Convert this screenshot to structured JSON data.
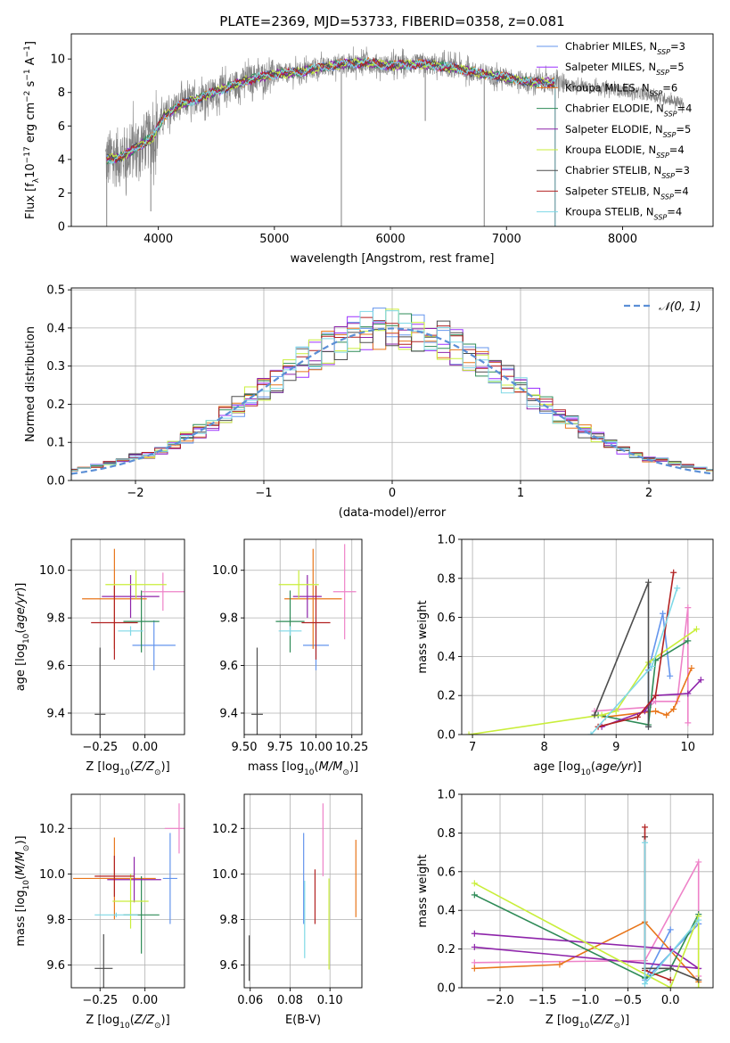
{
  "figure": {
    "title": "PLATE=2369, MJD=53733, FIBERID=0358, z=0.081"
  },
  "models": [
    {
      "name": "Chabrier MILES",
      "nssp": "3",
      "color": "#6495ed"
    },
    {
      "name": "Salpeter MILES",
      "nssp": "5",
      "color": "#9b30ff"
    },
    {
      "name": "Kroupa MILES",
      "nssp": "6",
      "color": "#e8761b"
    },
    {
      "name": "Chabrier ELODIE",
      "nssp": "4",
      "color": "#2e8b57"
    },
    {
      "name": "Salpeter ELODIE",
      "nssp": "5",
      "color": "#8e24aa"
    },
    {
      "name": "Kroupa ELODIE",
      "nssp": "4",
      "color": "#c9ee3a"
    },
    {
      "name": "Chabrier STELIB",
      "nssp": "3",
      "color": "#4d4d4d"
    },
    {
      "name": "Salpeter STELIB",
      "nssp": "4",
      "color": "#b22222"
    },
    {
      "name": "Kroupa STELIB",
      "nssp": "4",
      "color": "#7fd8e6"
    }
  ],
  "chart_data": [
    {
      "id": "spectrum",
      "type": "line",
      "xlabel": "wavelength [Angstrom, rest frame]",
      "ylabel": "Flux [f_λ 10^-17 erg cm^-2 s^-1 A^-1]",
      "xlim": [
        3250,
        8780
      ],
      "ylim": [
        0,
        11.5
      ],
      "xticks": [
        4000,
        5000,
        6000,
        7000,
        8000
      ],
      "yticks": [
        0,
        2,
        4,
        6,
        8,
        10
      ],
      "grid": false,
      "legend": "upper right",
      "data_color": "#808080",
      "continuum": [
        [
          3560,
          4.0
        ],
        [
          3700,
          4.2
        ],
        [
          3850,
          4.9
        ],
        [
          3950,
          5.3
        ],
        [
          4050,
          6.6
        ],
        [
          4200,
          7.3
        ],
        [
          4400,
          7.8
        ],
        [
          4600,
          8.3
        ],
        [
          4800,
          8.8
        ],
        [
          5000,
          9.1
        ],
        [
          5200,
          9.2
        ],
        [
          5400,
          9.5
        ],
        [
          5600,
          9.7
        ],
        [
          5800,
          9.8
        ],
        [
          6000,
          9.6
        ],
        [
          6200,
          9.7
        ],
        [
          6400,
          9.6
        ],
        [
          6600,
          9.4
        ],
        [
          6800,
          9.1
        ],
        [
          7000,
          8.9
        ],
        [
          7200,
          8.6
        ],
        [
          7400,
          8.6
        ],
        [
          7600,
          8.4
        ],
        [
          7800,
          8.3
        ],
        [
          8000,
          8.1
        ],
        [
          8200,
          7.9
        ],
        [
          8400,
          7.6
        ],
        [
          8530,
          7.3
        ]
      ],
      "model_end": 7420,
      "data_start": 3545,
      "data_end": 8530,
      "spikes_down": [
        [
          3555,
          0
        ],
        [
          3935,
          0.9
        ],
        [
          5577,
          0
        ],
        [
          6300,
          6.3
        ],
        [
          6808,
          0
        ],
        [
          7418,
          0
        ]
      ]
    },
    {
      "id": "residuals",
      "type": "histogram",
      "xlabel": "(data-model)/error",
      "ylabel": "Normed distribution",
      "xlim": [
        -2.5,
        2.5
      ],
      "ylim": [
        0,
        0.505
      ],
      "xticks": [
        -2,
        -1,
        0,
        1,
        2
      ],
      "yticks": [
        0.0,
        0.1,
        0.2,
        0.3,
        0.4,
        0.5
      ],
      "grid": true,
      "legend": "upper right",
      "reference_label": "𝒩(0, 1)",
      "reference_color": "#5b8fd6",
      "bin_width": 0.1
    },
    {
      "id": "age_vs_Z",
      "type": "errorbar",
      "xlabel": "Z [log10(Z/Z☉)]",
      "ylabel": "age [log10(age/yr)]",
      "xlim": [
        -0.41,
        0.22
      ],
      "ylim": [
        9.31,
        10.13
      ],
      "xticks": [
        -0.25,
        0.0
      ],
      "yticks": [
        9.4,
        9.6,
        9.8,
        10.0
      ],
      "points": [
        {
          "x": 0.05,
          "y": 9.685,
          "xerr": 0.12,
          "yerr": 0.105,
          "color": "#6495ed"
        },
        {
          "x": 0.1,
          "y": 9.91,
          "xerr": 0.12,
          "yerr": 0.08,
          "color": "#ee82c8"
        },
        {
          "x": -0.17,
          "y": 9.88,
          "xerr": 0.18,
          "yerr": 0.21,
          "color": "#e8761b"
        },
        {
          "x": -0.02,
          "y": 9.785,
          "xerr": 0.1,
          "yerr": 0.13,
          "color": "#2e8b57"
        },
        {
          "x": -0.08,
          "y": 9.89,
          "xerr": 0.16,
          "yerr": 0.09,
          "color": "#8e24aa"
        },
        {
          "x": -0.05,
          "y": 9.94,
          "xerr": 0.17,
          "yerr": 0.06,
          "color": "#c9ee3a"
        },
        {
          "x": -0.25,
          "y": 9.395,
          "xerr": 0.03,
          "yerr": 0.28,
          "color": "#4d4d4d"
        },
        {
          "x": -0.17,
          "y": 9.78,
          "xerr": 0.13,
          "yerr": 0.155,
          "color": "#b22222"
        },
        {
          "x": -0.08,
          "y": 9.745,
          "xerr": 0.07,
          "yerr": 0.02,
          "color": "#7fd8e6"
        }
      ]
    },
    {
      "id": "age_vs_mass",
      "type": "errorbar",
      "xlabel": "mass [log10(M/M☉)]",
      "ylabel": "",
      "xlim": [
        9.5,
        10.32
      ],
      "ylim": [
        9.31,
        10.13
      ],
      "xticks": [
        9.5,
        9.75,
        10.0,
        10.25
      ],
      "yticks": [
        9.4,
        9.6,
        9.8,
        10.0
      ],
      "points": [
        {
          "x": 10.0,
          "y": 9.685,
          "xerr": 0.09,
          "yerr": 0.105,
          "color": "#6495ed"
        },
        {
          "x": 10.2,
          "y": 9.91,
          "xerr": 0.08,
          "yerr": 0.2,
          "color": "#ee82c8"
        },
        {
          "x": 9.98,
          "y": 9.88,
          "xerr": 0.2,
          "yerr": 0.21,
          "color": "#e8761b"
        },
        {
          "x": 9.82,
          "y": 9.785,
          "xerr": 0.1,
          "yerr": 0.13,
          "color": "#2e8b57"
        },
        {
          "x": 9.94,
          "y": 9.89,
          "xerr": 0.1,
          "yerr": 0.09,
          "color": "#8e24aa"
        },
        {
          "x": 9.88,
          "y": 9.94,
          "xerr": 0.14,
          "yerr": 0.06,
          "color": "#c9ee3a"
        },
        {
          "x": 9.59,
          "y": 9.395,
          "xerr": 0.04,
          "yerr": 0.28,
          "color": "#4d4d4d"
        },
        {
          "x": 10.0,
          "y": 9.78,
          "xerr": 0.1,
          "yerr": 0.155,
          "color": "#b22222"
        },
        {
          "x": 9.82,
          "y": 9.745,
          "xerr": 0.08,
          "yerr": 0.02,
          "color": "#7fd8e6"
        }
      ]
    },
    {
      "id": "weight_vs_age",
      "type": "line",
      "xlabel": "age [log10(age/yr)]",
      "ylabel": "mass weight",
      "xlim": [
        6.85,
        10.35
      ],
      "ylim": [
        0,
        1.0
      ],
      "xticks": [
        7,
        8,
        9,
        10
      ],
      "yticks": [
        0.0,
        0.2,
        0.4,
        0.6,
        0.8,
        1.0
      ],
      "series": [
        {
          "color": "#6495ed",
          "points": [
            [
              9.45,
              0.04
            ],
            [
              9.45,
              0.33
            ],
            [
              9.65,
              0.62
            ],
            [
              9.75,
              0.3
            ]
          ]
        },
        {
          "color": "#ee82c8",
          "points": [
            [
              8.7,
              0.12
            ],
            [
              9.45,
              0.14
            ],
            [
              9.55,
              0.17
            ],
            [
              9.85,
              0.17
            ],
            [
              10.0,
              0.65
            ],
            [
              10.0,
              0.06
            ]
          ]
        },
        {
          "color": "#e8761b",
          "points": [
            [
              8.85,
              0.09
            ],
            [
              9.55,
              0.12
            ],
            [
              9.7,
              0.1
            ],
            [
              9.8,
              0.13
            ],
            [
              10.05,
              0.34
            ]
          ]
        },
        {
          "color": "#2e8b57",
          "points": [
            [
              8.75,
              0.1
            ],
            [
              9.45,
              0.05
            ],
            [
              9.55,
              0.38
            ],
            [
              10.0,
              0.48
            ]
          ]
        },
        {
          "color": "#8e24aa",
          "points": [
            [
              8.8,
              0.04
            ],
            [
              9.4,
              0.12
            ],
            [
              9.55,
              0.2
            ],
            [
              10.0,
              0.21
            ],
            [
              10.18,
              0.28
            ]
          ]
        },
        {
          "color": "#c9ee3a",
          "points": [
            [
              6.95,
              0.0
            ],
            [
              8.8,
              0.1
            ],
            [
              9.0,
              0.12
            ],
            [
              9.45,
              0.37
            ],
            [
              10.12,
              0.54
            ]
          ]
        },
        {
          "color": "#4d4d4d",
          "points": [
            [
              8.7,
              0.1
            ],
            [
              9.45,
              0.78
            ],
            [
              9.45,
              0.04
            ]
          ]
        },
        {
          "color": "#b22222",
          "points": [
            [
              8.75,
              0.04
            ],
            [
              9.3,
              0.09
            ],
            [
              9.55,
              0.2
            ],
            [
              9.8,
              0.83
            ]
          ]
        },
        {
          "color": "#7fd8e6",
          "points": [
            [
              8.65,
              0.0
            ],
            [
              9.5,
              0.35
            ],
            [
              9.85,
              0.75
            ]
          ]
        }
      ]
    },
    {
      "id": "mass_vs_Z",
      "type": "errorbar",
      "xlabel": "Z [log10(Z/Z☉)]",
      "ylabel": "mass [log10(M/M☉)]",
      "xlim": [
        -0.41,
        0.22
      ],
      "ylim": [
        9.5,
        10.35
      ],
      "xticks": [
        -0.25,
        0.0
      ],
      "yticks": [
        9.6,
        9.8,
        10.0,
        10.2
      ],
      "points": [
        {
          "x": 0.14,
          "y": 9.98,
          "xerr": 0.04,
          "yerr": 0.2,
          "color": "#6495ed"
        },
        {
          "x": 0.19,
          "y": 10.2,
          "xerr": 0.08,
          "yerr": 0.11,
          "color": "#ee82c8"
        },
        {
          "x": -0.17,
          "y": 9.98,
          "xerr": 0.23,
          "yerr": 0.18,
          "color": "#e8761b"
        },
        {
          "x": -0.02,
          "y": 9.82,
          "xerr": 0.1,
          "yerr": 0.17,
          "color": "#2e8b57"
        },
        {
          "x": -0.06,
          "y": 9.975,
          "xerr": 0.15,
          "yerr": 0.1,
          "color": "#8e24aa"
        },
        {
          "x": -0.08,
          "y": 9.88,
          "xerr": 0.1,
          "yerr": 0.12,
          "color": "#c9ee3a"
        },
        {
          "x": -0.23,
          "y": 9.585,
          "xerr": 0.05,
          "yerr": 0.15,
          "color": "#4d4d4d"
        },
        {
          "x": -0.17,
          "y": 9.99,
          "xerr": 0.11,
          "yerr": 0.09,
          "color": "#b22222"
        },
        {
          "x": -0.16,
          "y": 9.82,
          "xerr": 0.12,
          "yerr": 0.01,
          "color": "#7fd8e6"
        }
      ]
    },
    {
      "id": "mass_vs_ebv",
      "type": "errorbar",
      "xlabel": "E(B-V)",
      "ylabel": "",
      "xlim": [
        0.057,
        0.116
      ],
      "ylim": [
        9.5,
        10.35
      ],
      "xticks": [
        0.06,
        0.08,
        0.1
      ],
      "yticks": [
        9.6,
        9.8,
        10.0,
        10.2
      ],
      "points": [
        {
          "x": 0.0868,
          "y": 9.98,
          "xerr": 0,
          "yerr": 0.2,
          "color": "#6495ed"
        },
        {
          "x": 0.0965,
          "y": 10.15,
          "xerr": 0,
          "yerr": 0.16,
          "color": "#ee82c8"
        },
        {
          "x": 0.113,
          "y": 9.98,
          "xerr": 0,
          "yerr": 0.17,
          "color": "#e8761b"
        },
        {
          "x": 0.0995,
          "y": 9.78,
          "xerr": 0,
          "yerr": 0.2,
          "color": "#c9ee3a"
        },
        {
          "x": 0.0595,
          "y": 9.63,
          "xerr": 0,
          "yerr": 0.1,
          "color": "#4d4d4d"
        },
        {
          "x": 0.0925,
          "y": 9.9,
          "xerr": 0,
          "yerr": 0.12,
          "color": "#b22222"
        },
        {
          "x": 0.0873,
          "y": 9.8,
          "xerr": 0,
          "yerr": 0.17,
          "color": "#7fd8e6"
        }
      ]
    },
    {
      "id": "weight_vs_Z",
      "type": "line",
      "xlabel": "Z [log10(Z/Z☉)]",
      "ylabel": "mass weight",
      "xlim": [
        -2.45,
        0.5
      ],
      "ylim": [
        0,
        1.0
      ],
      "xticks": [
        -2.0,
        -1.5,
        -1.0,
        -0.5,
        0.0
      ],
      "yticks": [
        0.0,
        0.2,
        0.4,
        0.6,
        0.8,
        1.0
      ],
      "series": [
        {
          "color": "#6495ed",
          "points": [
            [
              0.0,
              0.3
            ],
            [
              -0.3,
              0.04
            ],
            [
              0.33,
              0.33
            ]
          ]
        },
        {
          "color": "#ee82c8",
          "points": [
            [
              -2.3,
              0.13
            ],
            [
              -0.3,
              0.14
            ],
            [
              0.33,
              0.65
            ],
            [
              0.33,
              0.06
            ]
          ]
        },
        {
          "color": "#e8761b",
          "points": [
            [
              -2.3,
              0.1
            ],
            [
              -1.3,
              0.12
            ],
            [
              -0.3,
              0.34
            ],
            [
              0.33,
              0.03
            ]
          ]
        },
        {
          "color": "#2e8b57",
          "points": [
            [
              -2.3,
              0.48
            ],
            [
              -0.3,
              0.05
            ],
            [
              0.0,
              0.1
            ],
            [
              0.33,
              0.38
            ]
          ]
        },
        {
          "color": "#8e24aa",
          "points": [
            [
              -2.3,
              0.28
            ],
            [
              0.0,
              0.2
            ],
            [
              0.33,
              0.1
            ],
            [
              -2.3,
              0.21
            ]
          ]
        },
        {
          "color": "#c9ee3a",
          "points": [
            [
              -2.3,
              0.54
            ],
            [
              0.0,
              0.0
            ],
            [
              0.33,
              0.37
            ],
            [
              0.33,
              0.0
            ]
          ]
        },
        {
          "color": "#4d4d4d",
          "points": [
            [
              -0.3,
              0.78
            ],
            [
              -0.3,
              0.1
            ],
            [
              0.0,
              0.1
            ],
            [
              0.33,
              0.04
            ]
          ]
        },
        {
          "color": "#b22222",
          "points": [
            [
              -0.3,
              0.83
            ],
            [
              -0.3,
              0.09
            ],
            [
              0.0,
              0.04
            ]
          ]
        },
        {
          "color": "#7fd8e6",
          "points": [
            [
              -0.3,
              0.75
            ],
            [
              -0.3,
              0.02
            ],
            [
              0.33,
              0.35
            ]
          ]
        }
      ]
    }
  ]
}
